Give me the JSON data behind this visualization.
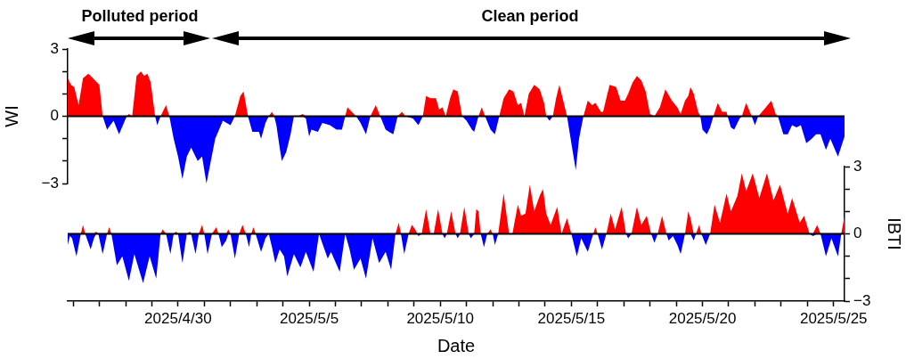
{
  "chart_data": [
    {
      "type": "area",
      "ylabel": "WI",
      "annotations": [
        "Polluted period",
        "Clean period"
      ],
      "tick_labels": "y",
      "xlim": [
        "2025-04-25T19:00",
        "2025-05-25T10:00"
      ],
      "ylim": [
        -3,
        3
      ],
      "yticks": [
        {
          "value": -3,
          "label": "−3"
        },
        {
          "value": -2,
          "label": null
        },
        {
          "value": -1,
          "label": null
        },
        0,
        {
          "value": 1,
          "label": null
        },
        {
          "value": 2,
          "label": null
        },
        3
      ],
      "ref_lines": [
        {
          "axis": "y",
          "value": 0,
          "color": "#000000"
        }
      ],
      "x": [
        "2025-04-25T19:00",
        "2025-04-25T22:00",
        "2025-04-26T01:00",
        "2025-04-26T05:00",
        "2025-04-26T09:00",
        "2025-04-26T14:00",
        "2025-04-26T20:00",
        "2025-04-27T00:00",
        "2025-04-27T03:00",
        "2025-04-27T07:00",
        "2025-04-27T13:00",
        "2025-04-27T18:00",
        "2025-04-28T01:00",
        "2025-04-28T03:00",
        "2025-04-28T06:00",
        "2025-04-28T10:00",
        "2025-04-28T14:00",
        "2025-04-28T17:00",
        "2025-04-28T20:00",
        "2025-04-28T23:00",
        "2025-04-29T03:00",
        "2025-04-29T05:00",
        "2025-04-29T08:00",
        "2025-04-29T13:00",
        "2025-04-29T16:00",
        "2025-04-29T20:00",
        "2025-04-30T00:00",
        "2025-04-30T04:00",
        "2025-04-30T08:00",
        "2025-04-30T12:00",
        "2025-04-30T18:00",
        "2025-04-30T22:00",
        "2025-05-01T02:00",
        "2025-05-01T06:00",
        "2025-05-01T10:00",
        "2025-05-01T17:00",
        "2025-05-02T00:00",
        "2025-05-02T04:00",
        "2025-05-02T09:00",
        "2025-05-02T12:00",
        "2025-05-02T16:00",
        "2025-05-02T20:00",
        "2025-05-03T02:00",
        "2025-05-03T04:00",
        "2025-05-03T08:00",
        "2025-05-03T11:00",
        "2025-05-03T14:00",
        "2025-05-03T16:00",
        "2025-05-03T18:00",
        "2025-05-03T21:00",
        "2025-05-03T23:00",
        "2025-05-04T03:00",
        "2025-05-04T07:00",
        "2025-05-04T10:00",
        "2025-05-04T14:00",
        "2025-05-04T18:00",
        "2025-05-04T21:00",
        "2025-05-05T00:00",
        "2025-05-05T02:00",
        "2025-05-05T08:00",
        "2025-05-05T12:00",
        "2025-05-05T19:00",
        "2025-05-06T01:00",
        "2025-05-06T06:00",
        "2025-05-06T09:00",
        "2025-05-06T11:00",
        "2025-05-06T15:00",
        "2025-05-06T19:00",
        "2025-05-06T23:00",
        "2025-05-07T04:00",
        "2025-05-07T08:00",
        "2025-05-07T13:00",
        "2025-05-07T17:00",
        "2025-05-07T22:00",
        "2025-05-08T01:00",
        "2025-05-08T05:00",
        "2025-05-08T09:00",
        "2025-05-08T13:00",
        "2025-05-08T16:00",
        "2025-05-08T23:00",
        "2025-05-09T04:00",
        "2025-05-09T08:00",
        "2025-05-09T11:00",
        "2025-05-09T15:00",
        "2025-05-09T20:00",
        "2025-05-09T23:00",
        "2025-05-10T02:00",
        "2025-05-10T05:00",
        "2025-05-10T09:00",
        "2025-05-10T12:00",
        "2025-05-10T16:00",
        "2025-05-10T20:00",
        "2025-05-11T00:00",
        "2025-05-11T05:00",
        "2025-05-11T07:00",
        "2025-05-11T11:00",
        "2025-05-11T14:00",
        "2025-05-11T17:00",
        "2025-05-11T22:00",
        "2025-05-12T02:00",
        "2025-05-12T06:00",
        "2025-05-12T10:00",
        "2025-05-12T15:00",
        "2025-05-12T19:00",
        "2025-05-12T23:00",
        "2025-05-13T02:00",
        "2025-05-13T05:00",
        "2025-05-13T09:00",
        "2025-05-13T14:00",
        "2025-05-13T19:00",
        "2025-05-13T23:00",
        "2025-05-14T01:00",
        "2025-05-14T04:00",
        "2025-05-14T07:00",
        "2025-05-14T10:00",
        "2025-05-14T13:00",
        "2025-05-14T16:00",
        "2025-05-14T20:00",
        "2025-05-14T23:00",
        "2025-05-15T04:00",
        "2025-05-15T07:00",
        "2025-05-15T11:00",
        "2025-05-15T15:00",
        "2025-05-15T19:00",
        "2025-05-15T22:00",
        "2025-05-16T03:00",
        "2025-05-16T05:00",
        "2025-05-16T11:00",
        "2025-05-16T17:00",
        "2025-05-16T21:00",
        "2025-05-17T01:00",
        "2025-05-17T04:00",
        "2025-05-17T08:00",
        "2025-05-17T12:00",
        "2025-05-17T16:00",
        "2025-05-17T20:00",
        "2025-05-18T00:00",
        "2025-05-18T04:00",
        "2025-05-18T09:00",
        "2025-05-18T14:00",
        "2025-05-18T20:00",
        "2025-05-19T01:00",
        "2025-05-19T04:00",
        "2025-05-19T08:00",
        "2025-05-19T11:00",
        "2025-05-19T13:00",
        "2025-05-19T16:00",
        "2025-05-19T20:00",
        "2025-05-19T22:00",
        "2025-05-20T00:00",
        "2025-05-20T04:00",
        "2025-05-20T07:00",
        "2025-05-20T10:00",
        "2025-05-20T14:00",
        "2025-05-20T18:00",
        "2025-05-20T22:00",
        "2025-05-20T23:00",
        "2025-05-21T02:00",
        "2025-05-21T05:00",
        "2025-05-21T10:00",
        "2025-05-21T12:00",
        "2025-05-21T16:00",
        "2025-05-21T21:00",
        "2025-05-22T00:00",
        "2025-05-22T03:00",
        "2025-05-22T10:00",
        "2025-05-22T15:00",
        "2025-05-22T19:00",
        "2025-05-22T21:00",
        "2025-05-23T02:00",
        "2025-05-23T06:00",
        "2025-05-23T10:00",
        "2025-05-23T14:00",
        "2025-05-23T18:00",
        "2025-05-23T23:00",
        "2025-05-24T04:00",
        "2025-05-24T08:00",
        "2025-05-24T12:00",
        "2025-05-24T17:00",
        "2025-05-24T21:00",
        "2025-05-25T04:00",
        "2025-05-25T08:00",
        "2025-05-25T10:00"
      ],
      "series": [
        {
          "color": "#ff0000",
          "values": [
            1.7,
            1.4,
            1.3,
            0.5,
            1.7,
            1.9,
            1.6,
            1.4,
            0,
            0,
            0,
            0,
            0,
            0.1,
            0,
            1.8,
            2.0,
            1.8,
            1.9,
            1.5,
            0,
            0,
            0,
            0.5,
            0,
            0,
            0,
            0,
            0,
            0,
            0,
            0,
            0,
            0,
            0,
            0,
            0,
            0,
            0.9,
            1.1,
            0,
            0,
            0,
            0,
            0,
            0,
            0.2,
            0,
            0,
            0,
            0,
            0,
            0,
            0,
            0,
            0.1,
            0,
            0,
            0,
            0,
            0,
            0,
            0,
            0,
            0,
            0.4,
            0.2,
            0,
            0,
            0,
            0,
            0.5,
            0,
            0,
            0,
            0,
            0,
            0.2,
            0,
            0,
            0,
            0,
            0.9,
            0.8,
            0.8,
            0.3,
            0.4,
            0,
            0.8,
            1.2,
            1.1,
            0,
            0,
            0,
            0,
            0,
            0.4,
            0,
            0,
            0,
            0,
            0.8,
            1.2,
            1.1,
            0.5,
            0.6,
            0,
            1.0,
            1.4,
            1.2,
            0.6,
            0,
            0,
            0,
            0.8,
            1.4,
            0.8,
            0,
            0,
            0,
            0,
            0,
            0.7,
            0.5,
            0.6,
            0.2,
            0.2,
            1.4,
            1.3,
            0.7,
            0.7,
            1.0,
            1.5,
            1.8,
            1.6,
            1.1,
            0.1,
            0,
            0.4,
            1.2,
            0.7,
            0.4,
            0.1,
            0.7,
            0.9,
            1.3,
            1.0,
            0.2,
            0,
            0,
            0,
            0,
            0,
            0.6,
            0.2,
            0.2,
            0,
            0,
            0,
            0,
            0,
            0.6,
            0,
            0,
            0,
            0.4,
            0.7,
            0.1,
            0,
            0,
            0,
            0,
            0,
            0,
            0,
            0,
            0,
            0,
            0,
            0,
            0,
            0,
            0
          ]
        },
        {
          "color": "#0000ff",
          "values": [
            0,
            0,
            0,
            0,
            0,
            0,
            0,
            0,
            0,
            -0.6,
            -0.2,
            -0.8,
            0,
            0,
            0,
            0,
            0,
            0,
            0,
            0,
            0,
            -0.4,
            0,
            0,
            0,
            -1.0,
            -1.8,
            -2.8,
            -1.8,
            -1.4,
            -2.0,
            -1.8,
            -3.0,
            -2.0,
            -1.0,
            -0.2,
            -0.4,
            0,
            0,
            0,
            0,
            -0.7,
            -0.7,
            -1.0,
            -0.3,
            0,
            0,
            0,
            -0.4,
            -1.4,
            -2.0,
            -1.6,
            -0.8,
            0,
            0,
            0,
            -0.1,
            -0.9,
            -0.6,
            -0.7,
            -0.3,
            -0.4,
            -0.6,
            -0.6,
            0,
            0,
            0,
            0,
            -0.3,
            -0.8,
            0,
            0,
            0,
            -0.6,
            -0.7,
            -0.8,
            0,
            0,
            0,
            -0.1,
            -0.4,
            0,
            0,
            0,
            0,
            0,
            0,
            0,
            0,
            0,
            0,
            0,
            -0.2,
            -0.6,
            -0.7,
            0,
            0,
            0,
            -0.6,
            -0.8,
            0,
            0,
            0,
            0,
            0,
            0,
            0,
            0,
            0,
            0,
            0,
            0,
            -0.2,
            0,
            0,
            0,
            0,
            0,
            -0.9,
            -2.4,
            -1.0,
            0,
            0,
            0,
            0,
            0,
            0,
            0,
            0,
            0,
            0,
            0,
            0,
            0,
            0,
            0,
            0,
            0,
            0,
            0,
            0,
            0,
            0,
            0,
            0,
            0,
            0,
            0,
            0,
            -0.6,
            -0.8,
            -0.5,
            0,
            0,
            0,
            0,
            0,
            -0.5,
            -0.6,
            -0.1,
            0,
            0,
            0,
            -0.4,
            0,
            0,
            0,
            0,
            0,
            -0.8,
            -0.8,
            -0.4,
            -0.5,
            -0.4,
            -1.2,
            -1.0,
            -0.8,
            -0.8,
            -1.5,
            -1.0,
            -1.8,
            -1.2,
            -0.9
          ]
        }
      ]
    },
    {
      "type": "area",
      "xlabel": "Date",
      "y2label": "IBTI",
      "xlim": [
        "2025-04-25T19:00",
        "2025-05-25T10:00"
      ],
      "xticks": [
        {
          "value": "2025-04-26",
          "label": null
        },
        {
          "value": "2025-04-27",
          "label": null
        },
        {
          "value": "2025-04-28",
          "label": null
        },
        {
          "value": "2025-04-29",
          "label": null
        },
        {
          "value": "2025-04-30",
          "label": "2025/4/30"
        },
        {
          "value": "2025-05-01",
          "label": null
        },
        {
          "value": "2025-05-02",
          "label": null
        },
        {
          "value": "2025-05-03",
          "label": null
        },
        {
          "value": "2025-05-04",
          "label": null
        },
        {
          "value": "2025-05-05",
          "label": "2025/5/5"
        },
        {
          "value": "2025-05-06",
          "label": null
        },
        {
          "value": "2025-05-07",
          "label": null
        },
        {
          "value": "2025-05-08",
          "label": null
        },
        {
          "value": "2025-05-09",
          "label": null
        },
        {
          "value": "2025-05-10",
          "label": "2025/5/10"
        },
        {
          "value": "2025-05-11",
          "label": null
        },
        {
          "value": "2025-05-12",
          "label": null
        },
        {
          "value": "2025-05-13",
          "label": null
        },
        {
          "value": "2025-05-14",
          "label": null
        },
        {
          "value": "2025-05-15",
          "label": "2025/5/15"
        },
        {
          "value": "2025-05-16",
          "label": null
        },
        {
          "value": "2025-05-17",
          "label": null
        },
        {
          "value": "2025-05-18",
          "label": null
        },
        {
          "value": "2025-05-19",
          "label": null
        },
        {
          "value": "2025-05-20",
          "label": "2025/5/20"
        },
        {
          "value": "2025-05-21",
          "label": null
        },
        {
          "value": "2025-05-22",
          "label": null
        },
        {
          "value": "2025-05-23",
          "label": null
        },
        {
          "value": "2025-05-24",
          "label": null
        },
        {
          "value": "2025-05-25",
          "label": "2025/5/25"
        }
      ],
      "y2lim": [
        -3,
        3
      ],
      "y2ticks": [
        {
          "value": -3,
          "label": "−3"
        },
        {
          "value": -2,
          "label": null
        },
        {
          "value": -1,
          "label": null
        },
        0,
        {
          "value": 1,
          "label": null
        },
        {
          "value": 2,
          "label": null
        },
        3
      ],
      "ref_lines": [
        {
          "axis": "y2",
          "value": 0,
          "color": "#000000"
        }
      ],
      "x": [
        "2025-04-25T19:00",
        "2025-04-25T21:00",
        "2025-04-25T23:00",
        "2025-04-26T03:00",
        "2025-04-26T07:00",
        "2025-04-26T09:00",
        "2025-04-26T11:00",
        "2025-04-26T16:00",
        "2025-04-26T19:00",
        "2025-04-26T21:00",
        "2025-04-26T23:00",
        "2025-04-27T03:00",
        "2025-04-27T07:00",
        "2025-04-27T09:00",
        "2025-04-27T11:00",
        "2025-04-27T16:00",
        "2025-04-27T21:00",
        "2025-04-28T03:00",
        "2025-04-28T08:00",
        "2025-04-28T16:00",
        "2025-04-28T22:00",
        "2025-04-29T04:00",
        "2025-04-29T08:00",
        "2025-04-29T10:00",
        "2025-04-29T13:00",
        "2025-04-29T17:00",
        "2025-04-29T20:00",
        "2025-04-29T22:00",
        "2025-04-30T00:00",
        "2025-04-30T04:00",
        "2025-04-30T08:00",
        "2025-04-30T11:00",
        "2025-04-30T12:00",
        "2025-04-30T16:00",
        "2025-04-30T19:00",
        "2025-04-30T22:00",
        "2025-05-01T00:00",
        "2025-05-01T03:00",
        "2025-05-01T07:00",
        "2025-05-01T11:00",
        "2025-05-01T13:00",
        "2025-05-01T16:00",
        "2025-05-01T20:00",
        "2025-05-01T22:00",
        "2025-05-02T00:00",
        "2025-05-02T04:00",
        "2025-05-02T08:00",
        "2025-05-02T11:00",
        "2025-05-02T14:00",
        "2025-05-02T17:00",
        "2025-05-02T19:00",
        "2025-05-02T21:00",
        "2025-05-02T23:00",
        "2025-05-03T04:00",
        "2025-05-03T08:00",
        "2025-05-03T11:00",
        "2025-05-03T14:00",
        "2025-05-03T17:00",
        "2025-05-03T21:00",
        "2025-05-04T01:00",
        "2025-05-04T04:00",
        "2025-05-04T10:00",
        "2025-05-04T16:00",
        "2025-05-04T21:00",
        "2025-05-05T04:00",
        "2025-05-05T09:00",
        "2025-05-05T17:00",
        "2025-05-05T20:00",
        "2025-05-06T04:00",
        "2025-05-06T09:00",
        "2025-05-06T13:00",
        "2025-05-06T17:00",
        "2025-05-06T23:00",
        "2025-05-07T04:00",
        "2025-05-07T10:00",
        "2025-05-07T16:00",
        "2025-05-07T22:00",
        "2025-05-08T03:00",
        "2025-05-08T07:00",
        "2025-05-08T10:00",
        "2025-05-08T12:00",
        "2025-05-08T15:00",
        "2025-05-08T19:00",
        "2025-05-08T22:00",
        "2025-05-09T01:00",
        "2025-05-09T03:00",
        "2025-05-09T04:00",
        "2025-05-09T07:00",
        "2025-05-09T11:00",
        "2025-05-09T15:00",
        "2025-05-09T18:00",
        "2025-05-09T22:00",
        "2025-05-10T02:00",
        "2025-05-10T04:00",
        "2025-05-10T06:00",
        "2025-05-10T10:00",
        "2025-05-10T14:00",
        "2025-05-10T16:00",
        "2025-05-10T18:00",
        "2025-05-10T22:00",
        "2025-05-11T02:00",
        "2025-05-11T04:00",
        "2025-05-11T07:00",
        "2025-05-11T09:00",
        "2025-05-11T11:00",
        "2025-05-11T13:00",
        "2025-05-11T16:00",
        "2025-05-11T19:00",
        "2025-05-11T22:00",
        "2025-05-12T00:00",
        "2025-05-12T02:00",
        "2025-05-12T05:00",
        "2025-05-12T10:00",
        "2025-05-12T15:00",
        "2025-05-12T18:00",
        "2025-05-12T23:00",
        "2025-05-13T02:00",
        "2025-05-13T06:00",
        "2025-05-13T10:00",
        "2025-05-13T14:00",
        "2025-05-13T19:00",
        "2025-05-13T22:00",
        "2025-05-14T01:00",
        "2025-05-14T05:00",
        "2025-05-14T11:00",
        "2025-05-14T15:00",
        "2025-05-14T20:00",
        "2025-05-15T00:00",
        "2025-05-15T05:00",
        "2025-05-15T09:00",
        "2025-05-15T15:00",
        "2025-05-15T20:00",
        "2025-05-15T22:00",
        "2025-05-16T00:00",
        "2025-05-16T04:00",
        "2025-05-16T08:00",
        "2025-05-16T12:00",
        "2025-05-16T16:00",
        "2025-05-16T22:00",
        "2025-05-17T02:00",
        "2025-05-17T04:00",
        "2025-05-17T07:00",
        "2025-05-17T12:00",
        "2025-05-17T16:00",
        "2025-05-17T21:00",
        "2025-05-18T01:00",
        "2025-05-18T04:00",
        "2025-05-18T07:00",
        "2025-05-18T11:00",
        "2025-05-18T15:00",
        "2025-05-18T17:00",
        "2025-05-18T21:00",
        "2025-05-19T01:00",
        "2025-05-19T04:00",
        "2025-05-19T08:00",
        "2025-05-19T11:00",
        "2025-05-19T13:00",
        "2025-05-19T16:00",
        "2025-05-19T18:00",
        "2025-05-19T21:00",
        "2025-05-19T23:00",
        "2025-05-20T03:00",
        "2025-05-20T07:00",
        "2025-05-20T11:00",
        "2025-05-20T16:00",
        "2025-05-20T22:00",
        "2025-05-21T02:00",
        "2025-05-21T08:00",
        "2025-05-21T12:00",
        "2025-05-21T16:00",
        "2025-05-21T22:00",
        "2025-05-22T04:00",
        "2025-05-22T11:00",
        "2025-05-22T17:00",
        "2025-05-22T23:00",
        "2025-05-23T06:00",
        "2025-05-23T10:00",
        "2025-05-23T17:00",
        "2025-05-23T21:00",
        "2025-05-24T02:00",
        "2025-05-24T05:00",
        "2025-05-24T09:00",
        "2025-05-24T12:00",
        "2025-05-24T17:00",
        "2025-05-24T22:00",
        "2025-05-25T04:00",
        "2025-05-25T07:00",
        "2025-05-25T10:00"
      ],
      "series": [
        {
          "color": "#ff0000",
          "axis": "y2",
          "values": [
            0,
            0,
            0,
            0,
            0,
            0.4,
            0,
            0,
            0,
            0.1,
            0,
            0,
            0,
            0.3,
            0,
            0,
            0,
            0,
            0,
            0,
            0,
            0,
            0,
            0.2,
            0,
            0,
            0,
            0.1,
            0,
            0,
            0,
            0.1,
            0,
            0,
            0,
            0.4,
            0,
            0,
            0,
            0.3,
            0,
            0,
            0,
            0.2,
            0,
            0,
            0,
            0.4,
            0,
            0,
            0,
            0.3,
            0,
            0,
            0,
            0,
            0,
            0,
            0,
            0,
            0,
            0,
            0,
            0,
            0,
            0,
            0,
            0,
            0,
            0,
            0,
            0,
            0,
            0,
            0,
            0,
            0,
            0,
            0,
            0.5,
            0,
            0,
            0,
            0.4,
            0.2,
            0,
            0,
            0,
            1.1,
            0,
            0,
            1.1,
            0,
            0,
            0,
            1.0,
            0,
            0,
            0,
            1.2,
            0,
            0,
            0,
            1.1,
            1.0,
            0,
            0,
            0,
            0.2,
            0,
            0,
            0,
            1.8,
            0,
            0,
            1.3,
            0.8,
            0.9,
            2.2,
            1.0,
            1.7,
            2.0,
            0.9,
            0.4,
            1.2,
            0,
            0.7,
            0,
            0,
            0,
            0,
            0,
            0.3,
            0,
            0,
            0,
            0.9,
            0.2,
            1.2,
            0,
            0,
            0,
            1.2,
            0.4,
            0.8,
            0,
            0,
            0,
            0.8,
            0,
            0,
            0,
            0,
            0,
            0,
            1.0,
            0.7,
            0,
            0,
            0.4,
            0,
            0,
            0,
            1.3,
            0.5,
            1.8,
            1.0,
            1.7,
            2.7,
            1.9,
            2.7,
            1.6,
            2.7,
            1.5,
            2.2,
            0.9,
            1.6,
            0.5,
            0.8,
            0,
            0,
            0.4,
            0,
            0,
            0,
            0,
            0,
            0.8
          ]
        },
        {
          "color": "#0000ff",
          "axis": "y2",
          "values": [
            -0.5,
            -0.1,
            -0.2,
            -1.0,
            0,
            0,
            0,
            -0.7,
            -0.2,
            0,
            0,
            -0.9,
            0,
            0,
            0,
            -1.4,
            -1.0,
            -2.1,
            -0.9,
            -2.2,
            -1.0,
            -2.0,
            0,
            0,
            0,
            -0.9,
            0,
            0,
            0,
            -1.3,
            0,
            0,
            0,
            -0.9,
            0,
            0,
            0,
            -0.9,
            0,
            0,
            0,
            -0.6,
            -0.3,
            0,
            0,
            -1.1,
            0,
            0,
            0,
            -0.6,
            0,
            0,
            0,
            -0.8,
            -0.2,
            0,
            -0.6,
            -1.3,
            -0.7,
            -1.0,
            -1.9,
            -0.9,
            -1.5,
            -0.8,
            -1.7,
            0,
            -1.1,
            -0.8,
            -1.7,
            0,
            -0.7,
            -1.6,
            -1.1,
            -2.0,
            -0.2,
            -1.3,
            -0.8,
            -1.6,
            0,
            0,
            0,
            -0.9,
            0,
            0,
            0,
            0,
            -0.1,
            0,
            0,
            0,
            0,
            0,
            0,
            -0.2,
            0,
            0,
            0,
            -0.2,
            0,
            0,
            0,
            -0.2,
            0,
            0,
            0,
            0,
            -0.6,
            0,
            0,
            0,
            -0.5,
            0,
            0,
            0,
            0,
            0,
            0,
            0,
            0,
            0,
            0,
            0,
            0,
            0,
            0,
            0,
            0,
            0,
            -1.0,
            -0.2,
            -0.8,
            0,
            0,
            0,
            -0.7,
            0,
            0,
            0,
            0,
            0,
            -0.2,
            0,
            0,
            0,
            0,
            0,
            -0.4,
            0,
            0,
            0,
            -0.3,
            -0.1,
            -0.5,
            -0.9,
            0,
            0,
            0,
            -0.3,
            0,
            0,
            0,
            -0.5,
            0,
            0,
            0,
            0,
            0,
            0,
            0,
            0,
            0,
            0,
            0,
            0,
            0,
            0,
            0,
            0,
            0,
            0,
            -0.1,
            0,
            0,
            -1.0,
            -0.2,
            -1.0,
            0,
            0
          ]
        }
      ]
    }
  ]
}
